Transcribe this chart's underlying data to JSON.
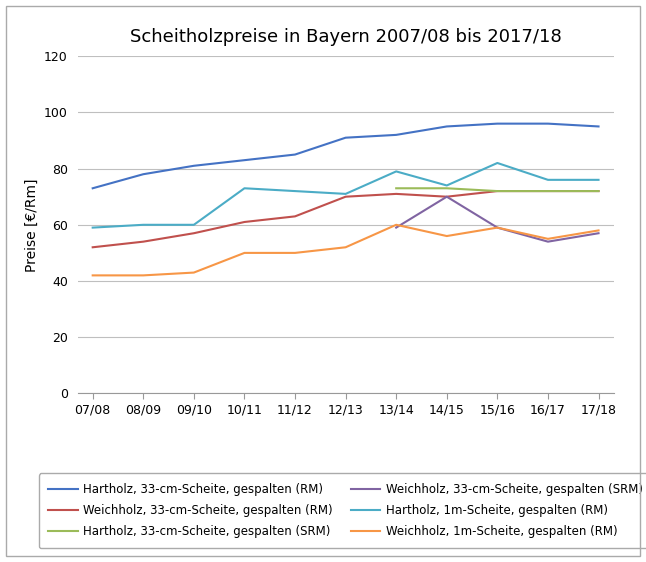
{
  "title": "Scheitholzpreise in Bayern 2007/08 bis 2017/18",
  "xlabel": "",
  "ylabel": "Preise [€/Rm]",
  "x_labels": [
    "07/08",
    "08/09",
    "09/10",
    "10/11",
    "11/12",
    "12/13",
    "13/14",
    "14/15",
    "15/16",
    "16/17",
    "17/18"
  ],
  "ylim": [
    0,
    120
  ],
  "yticks": [
    0,
    20,
    40,
    60,
    80,
    100,
    120
  ],
  "series": [
    {
      "label": "Hartholz, 33-cm-Scheite, gespalten (RM)",
      "color": "#4472C4",
      "values": [
        73,
        78,
        81,
        83,
        85,
        91,
        92,
        95,
        96,
        96,
        95
      ]
    },
    {
      "label": "Weichholz, 33-cm-Scheite, gespalten (RM)",
      "color": "#C0504D",
      "values": [
        52,
        54,
        57,
        61,
        63,
        70,
        71,
        70,
        72,
        72,
        72
      ]
    },
    {
      "label": "Hartholz, 33-cm-Scheite, gespalten (SRM)",
      "color": "#9BBB59",
      "values": [
        null,
        null,
        null,
        null,
        null,
        null,
        73,
        73,
        72,
        72,
        72
      ]
    },
    {
      "label": "Weichholz, 33-cm-Scheite, gespalten (SRM)",
      "color": "#8064A2",
      "values": [
        null,
        null,
        null,
        null,
        null,
        null,
        59,
        70,
        59,
        54,
        57
      ]
    },
    {
      "label": "Hartholz, 1m-Scheite, gespalten (RM)",
      "color": "#4BACC6",
      "values": [
        59,
        60,
        60,
        73,
        72,
        71,
        79,
        74,
        82,
        76,
        76
      ]
    },
    {
      "label": "Weichholz, 1m-Scheite, gespalten (RM)",
      "color": "#F79646",
      "values": [
        42,
        42,
        43,
        50,
        50,
        52,
        60,
        56,
        59,
        55,
        58
      ]
    }
  ],
  "legend_ncol": 2,
  "background_color": "#FFFFFF",
  "grid_color": "#BFBFBF",
  "title_fontsize": 13,
  "axis_fontsize": 10,
  "tick_fontsize": 9,
  "legend_fontsize": 8.5,
  "figure_border_color": "#AAAAAA"
}
